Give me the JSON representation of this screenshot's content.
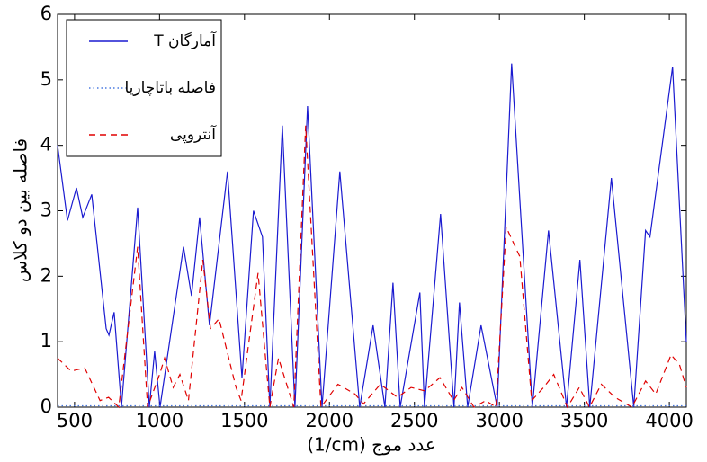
{
  "chart_data": {
    "type": "line",
    "xlabel": "(1/cm) عدد موج",
    "ylabel": "فاصله بین دو کلاس",
    "xlim": [
      400,
      4100
    ],
    "ylim": [
      0,
      6
    ],
    "xticks": [
      500,
      1000,
      1500,
      2000,
      2500,
      3000,
      3500,
      4000
    ],
    "yticks": [
      0,
      1,
      2,
      3,
      4,
      5,
      6
    ],
    "legend": "upper left",
    "series": [
      {
        "name": "T آمارگان",
        "color": "#1a1ad0",
        "linestyle": "solid",
        "x": [
          400,
          458,
          511,
          548,
          601,
          686,
          702,
          733,
          776,
          871,
          940,
          971,
          1003,
          1141,
          1188,
          1236,
          1294,
          1400,
          1485,
          1553,
          1606,
          1649,
          1723,
          1797,
          1871,
          1956,
          2061,
          2178,
          2257,
          2326,
          2374,
          2416,
          2532,
          2559,
          2654,
          2733,
          2765,
          2813,
          2892,
          2987,
          3072,
          3194,
          3289,
          3395,
          3474,
          3532,
          3659,
          3791,
          3860,
          3886,
          4019,
          4100
        ],
        "values": [
          4.0,
          2.85,
          3.35,
          2.9,
          3.25,
          1.2,
          1.1,
          1.45,
          0.0,
          3.05,
          0.0,
          0.85,
          0.0,
          2.45,
          1.7,
          2.9,
          1.25,
          3.6,
          0.45,
          3.0,
          2.6,
          0.0,
          4.3,
          0.0,
          4.6,
          0.0,
          3.6,
          0.0,
          1.25,
          0.0,
          1.9,
          0.0,
          1.75,
          0.0,
          2.95,
          0.0,
          1.6,
          0.0,
          1.25,
          0.0,
          5.25,
          0.0,
          2.7,
          0.0,
          2.25,
          0.0,
          3.5,
          0.0,
          2.7,
          2.6,
          5.2,
          1.0
        ]
      },
      {
        "name": "فاصله باتاچاریا",
        "color": "#4a7ae0",
        "linestyle": "dotted",
        "x": [
          400,
          4100
        ],
        "values": [
          0.02,
          0.02
        ]
      },
      {
        "name": "آنتروپی",
        "color": "#e00000",
        "linestyle": "dashed",
        "x": [
          400,
          480,
          560,
          650,
          700,
          760,
          871,
          930,
          1000,
          1030,
          1080,
          1120,
          1170,
          1255,
          1300,
          1350,
          1450,
          1480,
          1580,
          1649,
          1700,
          1790,
          1860,
          1950,
          2050,
          2150,
          2200,
          2300,
          2400,
          2480,
          2560,
          2650,
          2730,
          2780,
          2850,
          2920,
          2980,
          3040,
          3120,
          3190,
          3260,
          3320,
          3400,
          3470,
          3530,
          3600,
          3680,
          3780,
          3860,
          3920,
          4010,
          4060,
          4100
        ],
        "values": [
          0.75,
          0.55,
          0.6,
          0.1,
          0.15,
          0.0,
          2.45,
          0.0,
          0.5,
          0.75,
          0.3,
          0.5,
          0.1,
          2.25,
          1.2,
          1.35,
          0.3,
          0.1,
          2.05,
          0.0,
          0.75,
          0.0,
          4.3,
          0.0,
          0.35,
          0.2,
          0.05,
          0.35,
          0.15,
          0.3,
          0.25,
          0.45,
          0.1,
          0.3,
          0.0,
          0.1,
          0.0,
          2.75,
          2.3,
          0.1,
          0.3,
          0.5,
          0.0,
          0.3,
          0.0,
          0.35,
          0.15,
          0.0,
          0.4,
          0.2,
          0.8,
          0.65,
          0.3
        ]
      }
    ]
  }
}
